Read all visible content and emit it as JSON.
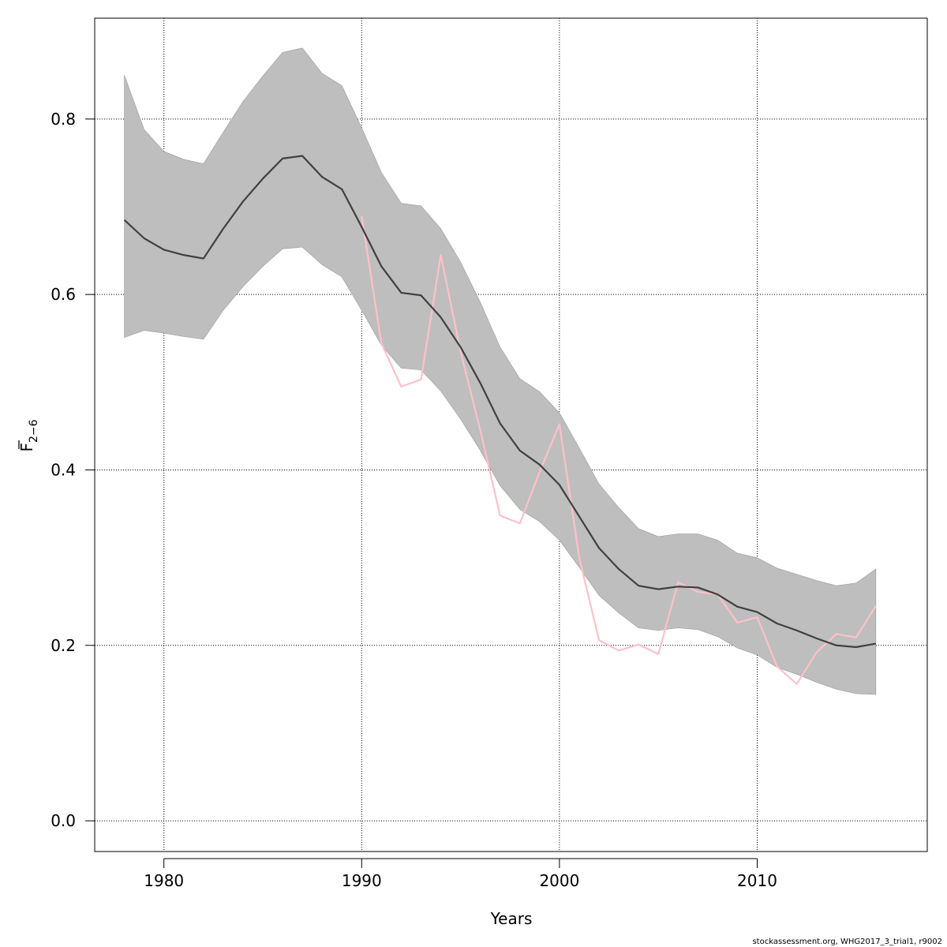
{
  "chart_data": {
    "type": "line",
    "xlabel": "Years",
    "ylabel": {
      "base": "F",
      "subscript": "2−6"
    },
    "xlim": [
      1976.5,
      2018.6
    ],
    "ylim": [
      -0.035,
      0.915
    ],
    "x_ticks": [
      1980,
      1990,
      2000,
      2010
    ],
    "y_ticks": [
      0.0,
      0.2,
      0.4,
      0.6,
      0.8
    ],
    "y_tick_labels": [
      "0.0",
      "0.2",
      "0.4",
      "0.6",
      "0.8"
    ],
    "grid": true,
    "colors": {
      "estimate": "#404040",
      "band": "#bebebe",
      "observed": "#ffc0cb",
      "grid": "#000000"
    },
    "years": [
      1978,
      1979,
      1980,
      1981,
      1982,
      1983,
      1984,
      1985,
      1986,
      1987,
      1988,
      1989,
      1990,
      1991,
      1992,
      1993,
      1994,
      1995,
      1996,
      1997,
      1998,
      1999,
      2000,
      2001,
      2002,
      2003,
      2004,
      2005,
      2006,
      2007,
      2008,
      2009,
      2010,
      2011,
      2012,
      2013,
      2014,
      2015,
      2016
    ],
    "series": [
      {
        "role": "estimate",
        "values": [
          0.685,
          0.664,
          0.651,
          0.645,
          0.641,
          0.675,
          0.706,
          0.732,
          0.755,
          0.758,
          0.734,
          0.72,
          0.677,
          0.632,
          0.602,
          0.599,
          0.574,
          0.54,
          0.499,
          0.453,
          0.422,
          0.406,
          0.383,
          0.347,
          0.311,
          0.287,
          0.268,
          0.264,
          0.267,
          0.266,
          0.258,
          0.244,
          0.238,
          0.225,
          0.217,
          0.208,
          0.2,
          0.198,
          0.202
        ]
      },
      {
        "role": "band",
        "upper": [
          0.85,
          0.788,
          0.763,
          0.754,
          0.749,
          0.785,
          0.82,
          0.849,
          0.876,
          0.881,
          0.852,
          0.838,
          0.79,
          0.739,
          0.704,
          0.701,
          0.675,
          0.637,
          0.591,
          0.54,
          0.504,
          0.489,
          0.465,
          0.425,
          0.384,
          0.357,
          0.333,
          0.324,
          0.327,
          0.327,
          0.32,
          0.305,
          0.3,
          0.288,
          0.281,
          0.274,
          0.268,
          0.271,
          0.287
        ],
        "lower": [
          0.551,
          0.559,
          0.556,
          0.552,
          0.549,
          0.582,
          0.609,
          0.632,
          0.652,
          0.654,
          0.634,
          0.62,
          0.582,
          0.542,
          0.516,
          0.514,
          0.49,
          0.458,
          0.422,
          0.382,
          0.355,
          0.341,
          0.32,
          0.289,
          0.257,
          0.237,
          0.22,
          0.217,
          0.22,
          0.218,
          0.21,
          0.197,
          0.189,
          0.175,
          0.167,
          0.158,
          0.15,
          0.145,
          0.144
        ]
      },
      {
        "role": "observed",
        "years": [
          1990,
          1991,
          1992,
          1993,
          1994,
          1995,
          1996,
          1997,
          1998,
          1999,
          2000,
          2001,
          2002,
          2003,
          2004,
          2005,
          2006,
          2007,
          2008,
          2009,
          2010,
          2011,
          2012,
          2013,
          2014,
          2015,
          2016
        ],
        "values": [
          0.689,
          0.544,
          0.495,
          0.503,
          0.645,
          0.535,
          0.445,
          0.348,
          0.339,
          0.398,
          0.452,
          0.3,
          0.206,
          0.194,
          0.201,
          0.19,
          0.272,
          0.261,
          0.258,
          0.226,
          0.232,
          0.176,
          0.156,
          0.192,
          0.213,
          0.209,
          0.245
        ]
      }
    ]
  },
  "footer": {
    "credit": "stockassessment.org, WHG2017_3_trial1, r9002"
  }
}
